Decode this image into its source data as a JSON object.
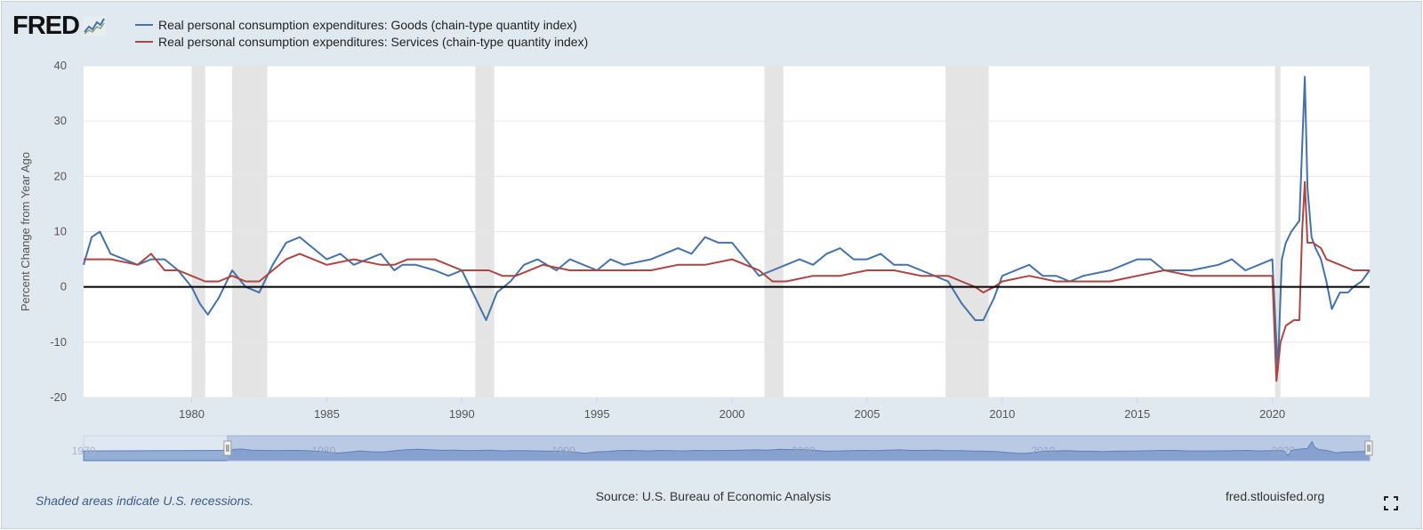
{
  "header": {
    "logo_text": "FRED",
    "logo_icon": "line-graph-icon"
  },
  "footer": {
    "note": "Shaded areas indicate U.S. recessions.",
    "source": "Source: U.S. Bureau of Economic Analysis",
    "url": "fred.stlouisfed.org",
    "fullscreen_icon": "fullscreen-icon"
  },
  "colors": {
    "goods": "#4572a7",
    "services": "#aa4643",
    "recession": "#e4e4e4",
    "zero_line": "#000000",
    "grid": "#e6e6e6",
    "navigator_fill": "#94aed6",
    "navigator_line": "#5b7fb4"
  },
  "chart_data": {
    "type": "line",
    "title": "",
    "xlabel": "",
    "ylabel": "Percent Change from Year Ago",
    "xlim": [
      1976.0,
      2023.6
    ],
    "ylim": [
      -20,
      40
    ],
    "yticks": [
      -20,
      -10,
      0,
      10,
      20,
      30,
      40
    ],
    "xticks": [
      1980,
      1985,
      1990,
      1995,
      2000,
      2005,
      2010,
      2015,
      2020
    ],
    "grid": true,
    "legend_position": "top-left",
    "recessions": [
      [
        1980.0,
        1980.5
      ],
      [
        1981.5,
        1982.8
      ],
      [
        1990.5,
        1991.2
      ],
      [
        2001.2,
        2001.9
      ],
      [
        2007.9,
        2009.5
      ],
      [
        2020.1,
        2020.3
      ]
    ],
    "series": [
      {
        "name": "Real personal consumption expenditures: Goods (chain-type quantity index)",
        "color": "#4572a7",
        "x": [
          1976.0,
          1976.3,
          1976.6,
          1977.0,
          1977.5,
          1978.0,
          1978.5,
          1979.0,
          1979.5,
          1980.0,
          1980.3,
          1980.6,
          1981.0,
          1981.5,
          1982.0,
          1982.5,
          1983.0,
          1983.5,
          1984.0,
          1984.5,
          1985.0,
          1985.5,
          1986.0,
          1986.5,
          1987.0,
          1987.5,
          1987.8,
          1988.3,
          1989.0,
          1989.5,
          1990.0,
          1990.5,
          1990.9,
          1991.3,
          1991.8,
          1992.3,
          1992.8,
          1993.5,
          1994.0,
          1995.0,
          1995.5,
          1996.0,
          1997.0,
          1998.0,
          1998.5,
          1999.0,
          1999.5,
          2000.0,
          2000.5,
          2001.0,
          2001.5,
          2002.0,
          2002.5,
          2003.0,
          2003.5,
          2004.0,
          2004.5,
          2005.0,
          2005.5,
          2006.0,
          2006.5,
          2007.0,
          2007.5,
          2008.0,
          2008.5,
          2009.0,
          2009.3,
          2009.7,
          2010.0,
          2010.5,
          2011.0,
          2011.5,
          2012.0,
          2012.5,
          2013.0,
          2014.0,
          2015.0,
          2015.5,
          2016.0,
          2017.0,
          2018.0,
          2018.5,
          2019.0,
          2019.5,
          2020.0,
          2020.2,
          2020.35,
          2020.5,
          2020.7,
          2021.0,
          2021.2,
          2021.3,
          2021.45,
          2021.6,
          2021.8,
          2022.0,
          2022.2,
          2022.5,
          2022.8,
          2023.0,
          2023.3,
          2023.6
        ],
        "y": [
          4,
          9,
          10,
          6,
          5,
          4,
          5,
          5,
          3,
          0,
          -3,
          -5,
          -2,
          3,
          0,
          -1,
          4,
          8,
          9,
          7,
          5,
          6,
          4,
          5,
          6,
          3,
          4,
          4,
          3,
          2,
          3,
          -2,
          -6,
          -1,
          1,
          4,
          5,
          3,
          5,
          3,
          5,
          4,
          5,
          7,
          6,
          9,
          8,
          8,
          5,
          2,
          3,
          4,
          5,
          4,
          6,
          7,
          5,
          5,
          6,
          4,
          4,
          3,
          2,
          1,
          -3,
          -6,
          -6,
          -2,
          2,
          3,
          4,
          2,
          2,
          1,
          2,
          3,
          5,
          5,
          3,
          3,
          4,
          5,
          3,
          4,
          5,
          -15,
          5,
          8,
          10,
          12,
          38,
          18,
          9,
          7,
          5,
          1,
          -4,
          -1,
          -1,
          0,
          1,
          3
        ]
      },
      {
        "name": "Real personal consumption expenditures: Services (chain-type quantity index)",
        "color": "#aa4643",
        "x": [
          1976.0,
          1977.0,
          1978.0,
          1978.5,
          1979.0,
          1979.5,
          1980.0,
          1980.5,
          1981.0,
          1981.5,
          1982.0,
          1982.5,
          1983.0,
          1983.5,
          1984.0,
          1985.0,
          1986.0,
          1987.0,
          1987.5,
          1988.0,
          1989.0,
          1990.0,
          1990.5,
          1991.0,
          1991.5,
          1992.0,
          1993.0,
          1994.0,
          1995.0,
          1996.0,
          1997.0,
          1998.0,
          1999.0,
          2000.0,
          2000.5,
          2001.0,
          2001.5,
          2002.0,
          2003.0,
          2004.0,
          2005.0,
          2006.0,
          2007.0,
          2008.0,
          2008.5,
          2009.0,
          2009.3,
          2009.7,
          2010.0,
          2011.0,
          2012.0,
          2013.0,
          2014.0,
          2015.0,
          2016.0,
          2017.0,
          2018.0,
          2019.0,
          2019.5,
          2020.0,
          2020.15,
          2020.3,
          2020.5,
          2020.8,
          2021.0,
          2021.1,
          2021.2,
          2021.3,
          2021.5,
          2021.8,
          2022.0,
          2022.5,
          2023.0,
          2023.6
        ],
        "y": [
          5,
          5,
          4,
          6,
          3,
          3,
          2,
          1,
          1,
          2,
          1,
          1,
          3,
          5,
          6,
          4,
          5,
          4,
          4,
          5,
          5,
          3,
          3,
          3,
          2,
          2,
          4,
          3,
          3,
          3,
          3,
          4,
          4,
          5,
          4,
          3,
          1,
          1,
          2,
          2,
          3,
          3,
          2,
          2,
          1,
          0,
          -1,
          0,
          1,
          2,
          1,
          1,
          1,
          2,
          3,
          2,
          2,
          2,
          2,
          2,
          -17,
          -10,
          -7,
          -6,
          -6,
          10,
          19,
          8,
          8,
          7,
          5,
          4,
          3,
          3
        ]
      }
    ],
    "navigator": {
      "labels": [
        "1970",
        "1980",
        "1990",
        "2000",
        "2010",
        "2020"
      ]
    }
  }
}
